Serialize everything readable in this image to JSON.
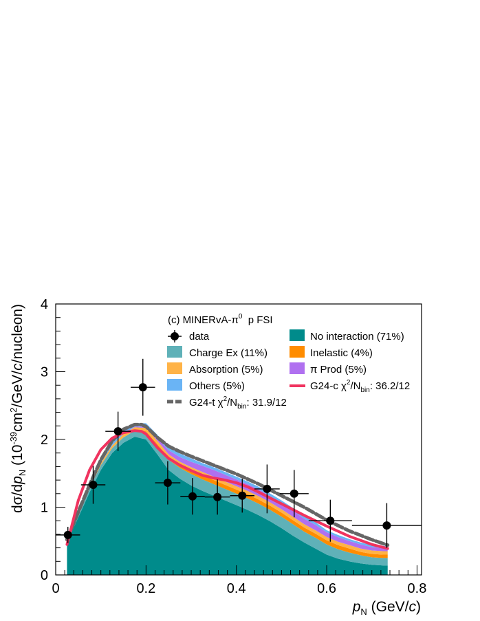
{
  "chart_data": {
    "type": "area",
    "title": "(c) MINERvA-π⁰  p FSI",
    "title_parts": {
      "prefix": "(c) MINERvA-π",
      "sup": "0",
      "suffix": "  p FSI"
    },
    "xlabel": "p_N (GeV/c)",
    "xlabel_parts": {
      "p": "p",
      "sub": "N",
      "units_open": " (GeV/",
      "c": "c",
      "close": ")"
    },
    "ylabel": "dσ/dp_N (10^-39 cm²/GeV/c/nucleon)",
    "ylabel_parts": {
      "a": "dσ/d",
      "p": "p",
      "sub": "N",
      "b": " (10",
      "exp": "-39",
      "c": "cm",
      "sq": "2",
      "d": "/GeV/",
      "cc": "c",
      "e": "/nucleon)"
    },
    "xlim": [
      0,
      0.81
    ],
    "ylim": [
      0,
      4
    ],
    "xticks": [
      0,
      0.2,
      0.4,
      0.6,
      0.8
    ],
    "xtick_labels": [
      "0",
      "0.2",
      "0.4",
      "0.6",
      "0.8"
    ],
    "yticks": [
      0,
      1,
      2,
      3,
      4
    ],
    "ytick_labels": [
      "0",
      "1",
      "2",
      "3",
      "4"
    ],
    "stack_x": [
      0.025,
      0.05,
      0.075,
      0.1,
      0.125,
      0.15,
      0.175,
      0.2,
      0.225,
      0.25,
      0.275,
      0.3,
      0.325,
      0.35,
      0.375,
      0.4,
      0.425,
      0.45,
      0.475,
      0.5,
      0.525,
      0.55,
      0.575,
      0.6,
      0.625,
      0.65,
      0.675,
      0.7,
      0.725,
      0.735
    ],
    "series": [
      {
        "name": "No interaction (71%)",
        "color": "#008b8b",
        "values": [
          0.48,
          0.85,
          1.22,
          1.55,
          1.8,
          1.95,
          2.04,
          2.0,
          1.78,
          1.55,
          1.42,
          1.32,
          1.24,
          1.17,
          1.1,
          1.03,
          0.96,
          0.88,
          0.79,
          0.69,
          0.58,
          0.48,
          0.39,
          0.3,
          0.24,
          0.2,
          0.17,
          0.15,
          0.14,
          0.14
        ]
      },
      {
        "name": "Charge Ex (11%)",
        "color": "#5fb1b8",
        "values": [
          0.02,
          0.04,
          0.06,
          0.07,
          0.07,
          0.08,
          0.09,
          0.11,
          0.13,
          0.15,
          0.16,
          0.17,
          0.17,
          0.17,
          0.17,
          0.17,
          0.17,
          0.17,
          0.17,
          0.17,
          0.17,
          0.16,
          0.16,
          0.15,
          0.14,
          0.13,
          0.12,
          0.11,
          0.11,
          0.11
        ]
      },
      {
        "name": "Inelastic (4%)",
        "color": "#ff8c00",
        "values": [
          0.0,
          0.0,
          0.0,
          0.0,
          0.0,
          0.0,
          0.0,
          0.01,
          0.02,
          0.03,
          0.04,
          0.05,
          0.06,
          0.06,
          0.06,
          0.06,
          0.06,
          0.06,
          0.06,
          0.06,
          0.06,
          0.06,
          0.06,
          0.06,
          0.06,
          0.06,
          0.05,
          0.05,
          0.05,
          0.05
        ]
      },
      {
        "name": "Absorption (5%)",
        "color": "#ffb347",
        "values": [
          0.0,
          0.01,
          0.02,
          0.03,
          0.04,
          0.05,
          0.05,
          0.05,
          0.05,
          0.05,
          0.05,
          0.05,
          0.05,
          0.05,
          0.05,
          0.05,
          0.05,
          0.05,
          0.05,
          0.05,
          0.05,
          0.05,
          0.05,
          0.05,
          0.05,
          0.05,
          0.05,
          0.05,
          0.05,
          0.05
        ]
      },
      {
        "name": "π Prod (5%)",
        "color": "#b070f0",
        "values": [
          0.0,
          0.0,
          0.0,
          0.0,
          0.0,
          0.0,
          0.01,
          0.02,
          0.04,
          0.06,
          0.07,
          0.08,
          0.09,
          0.1,
          0.1,
          0.1,
          0.1,
          0.1,
          0.09,
          0.09,
          0.09,
          0.08,
          0.08,
          0.07,
          0.07,
          0.06,
          0.06,
          0.05,
          0.05,
          0.05
        ]
      },
      {
        "name": "Others (5%)",
        "color": "#6ab4f5",
        "values": [
          0.0,
          0.02,
          0.03,
          0.04,
          0.05,
          0.05,
          0.05,
          0.05,
          0.05,
          0.05,
          0.05,
          0.05,
          0.04,
          0.04,
          0.04,
          0.04,
          0.04,
          0.04,
          0.04,
          0.04,
          0.04,
          0.04,
          0.04,
          0.03,
          0.03,
          0.03,
          0.03,
          0.03,
          0.03,
          0.03
        ]
      }
    ],
    "lines": [
      {
        "name": "G24-t",
        "label": "G24-t χ²/N_bin: 31.9/12",
        "color": "#666666",
        "dashed": true,
        "x": [
          0.025,
          0.05,
          0.075,
          0.1,
          0.125,
          0.15,
          0.175,
          0.19,
          0.2,
          0.225,
          0.25,
          0.275,
          0.3,
          0.35,
          0.4,
          0.45,
          0.5,
          0.55,
          0.6,
          0.65,
          0.7,
          0.735
        ],
        "y": [
          0.52,
          0.93,
          1.33,
          1.7,
          1.98,
          2.15,
          2.22,
          2.22,
          2.19,
          2.03,
          1.9,
          1.82,
          1.75,
          1.62,
          1.49,
          1.34,
          1.17,
          1.0,
          0.81,
          0.65,
          0.52,
          0.44
        ]
      },
      {
        "name": "G24-c",
        "label": "G24-c χ²/N_bin: 36.2/12",
        "color": "#f0335f",
        "dashed": false,
        "x": [
          0.025,
          0.05,
          0.075,
          0.1,
          0.125,
          0.15,
          0.175,
          0.19,
          0.2,
          0.225,
          0.25,
          0.275,
          0.3,
          0.325,
          0.35,
          0.375,
          0.4,
          0.425,
          0.45,
          0.5,
          0.55,
          0.6,
          0.65,
          0.7,
          0.735
        ],
        "y": [
          0.45,
          1.1,
          1.55,
          1.85,
          2.02,
          2.1,
          2.13,
          2.12,
          2.08,
          1.88,
          1.72,
          1.62,
          1.54,
          1.47,
          1.43,
          1.4,
          1.36,
          1.3,
          1.22,
          1.05,
          0.88,
          0.72,
          0.57,
          0.45,
          0.39
        ]
      }
    ],
    "data_points": {
      "name": "data",
      "x": [
        0.027,
        0.083,
        0.138,
        0.193,
        0.248,
        0.303,
        0.358,
        0.413,
        0.468,
        0.528,
        0.608,
        0.733
      ],
      "y": [
        0.59,
        1.33,
        2.12,
        2.77,
        1.36,
        1.16,
        1.15,
        1.17,
        1.27,
        1.2,
        0.8,
        0.73
      ],
      "xerr": [
        0.027,
        0.027,
        0.028,
        0.027,
        0.028,
        0.027,
        0.028,
        0.027,
        0.028,
        0.032,
        0.048,
        0.077
      ],
      "yerr": [
        0.12,
        0.28,
        0.29,
        0.42,
        0.32,
        0.27,
        0.26,
        0.25,
        0.36,
        0.35,
        0.31,
        0.33
      ]
    },
    "legend": {
      "placement": "top-right",
      "entries": [
        {
          "label": "data",
          "kind": "marker"
        },
        {
          "label": "No interaction (71%)",
          "kind": "fill",
          "color": "#008b8b"
        },
        {
          "label": "Charge Ex (11%)",
          "kind": "fill",
          "color": "#5fb1b8"
        },
        {
          "label": "Inelastic (4%)",
          "kind": "fill",
          "color": "#ff8c00"
        },
        {
          "label": "Absorption (5%)",
          "kind": "fill",
          "color": "#ffb347"
        },
        {
          "label": "π Prod (5%)",
          "kind": "fill",
          "color": "#b070f0"
        },
        {
          "label": "Others (5%)",
          "kind": "fill",
          "color": "#6ab4f5"
        },
        {
          "label": "G24-c χ²/N_bin: 36.2/12",
          "kind": "line",
          "color": "#f0335f",
          "parts": {
            "a": "G24-c χ",
            "sq": "2",
            "b": "/N",
            "sub": "bin",
            "c": ": 36.2/12"
          }
        },
        {
          "label": "G24-t χ²/N_bin: 31.9/12",
          "kind": "dashline",
          "color": "#666666",
          "parts": {
            "a": "G24-t χ",
            "sq": "2",
            "b": "/N",
            "sub": "bin",
            "c": ": 31.9/12"
          }
        }
      ]
    }
  }
}
